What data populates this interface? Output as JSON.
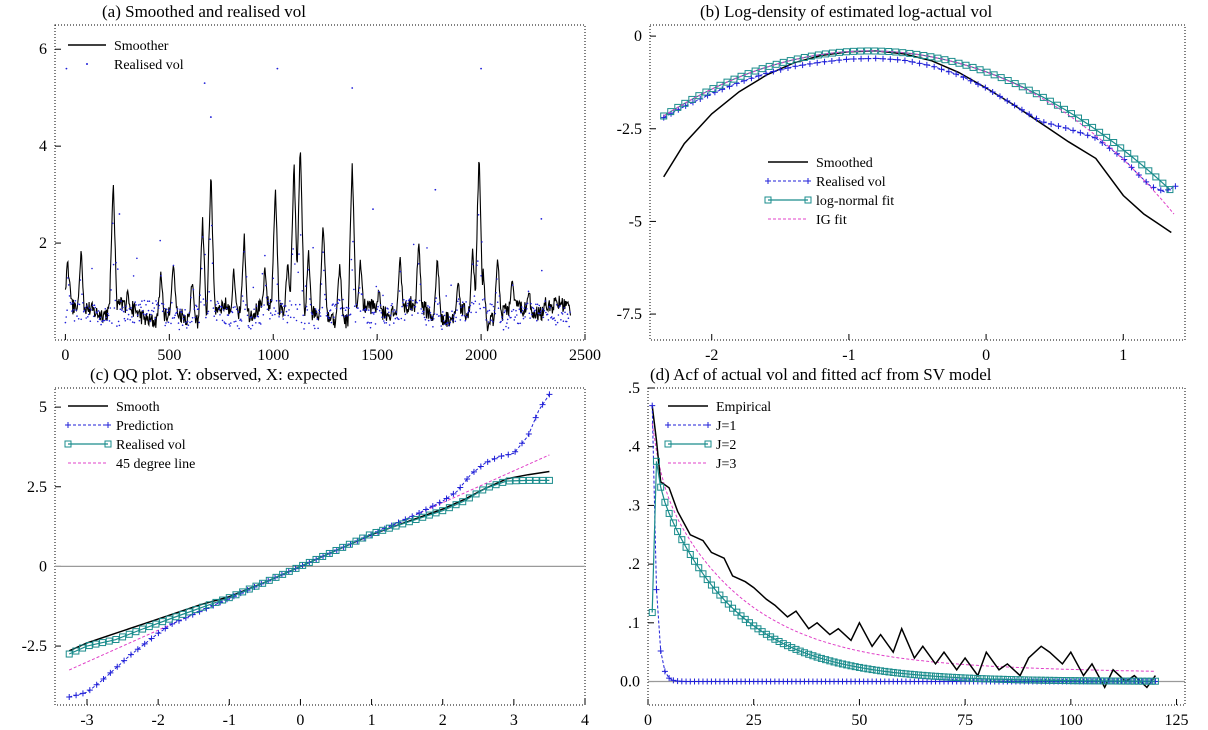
{
  "colors": {
    "smooth": "#000000",
    "blue": "#1f1fd8",
    "teal": "#1a8c8c",
    "magenta": "#e040c8",
    "zero": "#9a9a9a",
    "frame": "#000000"
  },
  "chart_data": [
    {
      "id": "a",
      "type": "line",
      "title": "(a) Smoothed and realised vol",
      "xlim": [
        -50,
        2500
      ],
      "ylim": [
        0.0,
        6.5
      ],
      "xticks": [
        0,
        500,
        1000,
        1500,
        2000,
        2500
      ],
      "yticks": [
        2,
        4,
        6
      ],
      "legend": {
        "position": "top-left",
        "entries": [
          {
            "label": "Smoother",
            "style": "smooth"
          },
          {
            "label": "Realised vol",
            "style": "dots"
          }
        ]
      },
      "series": [
        {
          "name": "Smoother",
          "style": "smooth",
          "generated": "vol_smooth"
        },
        {
          "name": "Realised vol",
          "style": "dots",
          "generated": "vol_dots",
          "x": [
            5,
            260,
            670,
            700,
            1020,
            1380,
            1480,
            1780,
            2000,
            2290
          ],
          "y": [
            5.6,
            2.6,
            5.3,
            4.6,
            5.6,
            5.2,
            2.7,
            3.1,
            5.6,
            2.5
          ]
        }
      ],
      "spikes": {
        "x": [
          10,
          20,
          75,
          230,
          300,
          460,
          520,
          610,
          660,
          700,
          810,
          860,
          960,
          1010,
          1070,
          1100,
          1130,
          1170,
          1240,
          1320,
          1380,
          1420,
          1510,
          1610,
          1700,
          1790,
          1890,
          1960,
          1990,
          2010,
          2080,
          2150,
          2230,
          2310
        ],
        "y": [
          1.6,
          1.2,
          1.8,
          3.2,
          1.0,
          1.3,
          1.6,
          1.1,
          2.4,
          3.4,
          1.3,
          2.1,
          1.4,
          3.1,
          1.6,
          3.6,
          4.0,
          1.7,
          2.4,
          1.5,
          3.6,
          1.6,
          1.0,
          1.7,
          2.0,
          1.6,
          1.1,
          1.8,
          3.8,
          1.3,
          1.6,
          1.2,
          1.0,
          0.8
        ]
      }
    },
    {
      "id": "b",
      "type": "line",
      "title": "(b) Log-density of estimated log-actual vol",
      "xlim": [
        -2.45,
        1.45
      ],
      "ylim": [
        -8.2,
        0.3
      ],
      "xticks": [
        -2,
        -1,
        0,
        1
      ],
      "yticks": [
        0,
        -2.5,
        -5,
        -7.5
      ],
      "legend": {
        "position": "center-right",
        "entries": [
          {
            "label": "Smoothed",
            "style": "smooth"
          },
          {
            "label": "Realised vol",
            "style": "plus"
          },
          {
            "label": "log-normal fit",
            "style": "square"
          },
          {
            "label": "IG fit",
            "style": "dash"
          }
        ]
      },
      "series": [
        {
          "name": "Smoothed",
          "style": "smooth",
          "x": [
            -2.35,
            -2.2,
            -2.0,
            -1.8,
            -1.6,
            -1.4,
            -1.2,
            -1.0,
            -0.8,
            -0.6,
            -0.4,
            -0.2,
            0.0,
            0.2,
            0.4,
            0.6,
            0.8,
            1.0,
            1.15,
            1.25,
            1.35
          ],
          "y": [
            -3.8,
            -2.9,
            -2.1,
            -1.5,
            -1.05,
            -0.72,
            -0.52,
            -0.42,
            -0.4,
            -0.48,
            -0.66,
            -0.98,
            -1.4,
            -1.85,
            -2.35,
            -2.85,
            -3.3,
            -4.3,
            -4.8,
            -5.05,
            -5.3
          ]
        },
        {
          "name": "Realised vol",
          "style": "plus",
          "x": [
            -2.35,
            -2.2,
            -2.0,
            -1.8,
            -1.6,
            -1.4,
            -1.2,
            -1.0,
            -0.8,
            -0.6,
            -0.4,
            -0.2,
            0.0,
            0.2,
            0.4,
            0.6,
            0.8,
            1.0,
            1.1,
            1.2,
            1.3,
            1.38
          ],
          "y": [
            -2.2,
            -1.9,
            -1.55,
            -1.25,
            -1.0,
            -0.82,
            -0.7,
            -0.62,
            -0.6,
            -0.65,
            -0.8,
            -1.05,
            -1.4,
            -1.85,
            -2.3,
            -2.5,
            -2.75,
            -3.3,
            -3.7,
            -4.05,
            -4.2,
            -4.05
          ]
        },
        {
          "name": "log-normal fit",
          "style": "square",
          "fn": "ln"
        },
        {
          "name": "IG fit",
          "style": "dash",
          "fn": "ig"
        }
      ]
    },
    {
      "id": "c",
      "type": "line",
      "title": "(c) QQ plot. Y: observed, X: expected",
      "xlim": [
        -3.45,
        4.0
      ],
      "ylim": [
        -4.35,
        5.6
      ],
      "xticks": [
        -3,
        -2,
        -1,
        0,
        1,
        2,
        3,
        4
      ],
      "yticks": [
        5,
        2.5,
        0,
        -2.5
      ],
      "zero_line": true,
      "legend": {
        "position": "top-left",
        "entries": [
          {
            "label": "Smooth",
            "style": "smooth"
          },
          {
            "label": "Prediction",
            "style": "plus"
          },
          {
            "label": "Realised vol",
            "style": "square"
          },
          {
            "label": "45 degree line",
            "style": "dash"
          }
        ]
      },
      "series": [
        {
          "name": "45 degree line",
          "style": "dash",
          "x": [
            -3.25,
            3.5
          ],
          "y": [
            -3.25,
            3.5
          ]
        },
        {
          "name": "Smooth",
          "style": "smooth",
          "x": [
            -3.25,
            -3.0,
            -2.6,
            -2.2,
            -1.8,
            -1.4,
            -1.0,
            -0.5,
            0.0,
            0.5,
            1.0,
            1.5,
            2.0,
            2.3,
            2.6,
            2.9,
            3.2,
            3.5
          ],
          "y": [
            -2.65,
            -2.4,
            -2.1,
            -1.8,
            -1.5,
            -1.2,
            -0.95,
            -0.5,
            0.0,
            0.5,
            1.0,
            1.4,
            1.8,
            2.1,
            2.45,
            2.75,
            2.88,
            2.98
          ]
        },
        {
          "name": "Prediction",
          "style": "plus",
          "x": [
            -3.25,
            -3.0,
            -2.8,
            -2.6,
            -2.4,
            -2.2,
            -2.0,
            -1.8,
            -1.5,
            -1.2,
            -0.8,
            -0.4,
            0.0,
            0.4,
            0.8,
            1.2,
            1.6,
            2.0,
            2.2,
            2.4,
            2.6,
            2.8,
            3.0,
            3.2,
            3.35,
            3.5
          ],
          "y": [
            -4.1,
            -3.95,
            -3.6,
            -3.2,
            -2.8,
            -2.45,
            -2.1,
            -1.8,
            -1.5,
            -1.2,
            -0.8,
            -0.4,
            0.0,
            0.4,
            0.8,
            1.2,
            1.6,
            2.05,
            2.35,
            2.9,
            3.25,
            3.45,
            3.55,
            4.1,
            4.9,
            5.4
          ]
        },
        {
          "name": "Realised vol",
          "style": "square",
          "x": [
            -3.25,
            -3.0,
            -2.6,
            -2.2,
            -1.8,
            -1.4,
            -1.0,
            -0.5,
            0.0,
            0.5,
            1.0,
            1.5,
            2.0,
            2.3,
            2.6,
            2.9,
            3.2,
            3.5
          ],
          "y": [
            -2.75,
            -2.5,
            -2.3,
            -1.95,
            -1.62,
            -1.3,
            -0.98,
            -0.5,
            0.0,
            0.5,
            1.02,
            1.38,
            1.75,
            2.05,
            2.45,
            2.68,
            2.7,
            2.7
          ]
        }
      ]
    },
    {
      "id": "d",
      "type": "line",
      "title": "(d) Acf of actual vol and fitted acf from SV model",
      "xlim": [
        0,
        127
      ],
      "ylim": [
        -0.04,
        0.5
      ],
      "xticks": [
        0,
        25,
        50,
        75,
        100,
        125
      ],
      "yticks": [
        0.5,
        0.4,
        0.3,
        0.2,
        0.1,
        0.0
      ],
      "ytick_labels": [
        ".5",
        ".4",
        ".3",
        ".2",
        ".1",
        "0.0"
      ],
      "zero_line": true,
      "legend": {
        "position": "top-left",
        "entries": [
          {
            "label": "Empirical",
            "style": "smooth"
          },
          {
            "label": "J=1",
            "style": "plus"
          },
          {
            "label": "J=2",
            "style": "square"
          },
          {
            "label": "J=3",
            "style": "dash"
          }
        ]
      },
      "series": [
        {
          "name": "J=3",
          "style": "dash",
          "fn": "j3"
        },
        {
          "name": "Empirical",
          "style": "smooth",
          "x": [
            1,
            2,
            3,
            5,
            7,
            10,
            13,
            15,
            18,
            20,
            23,
            25,
            28,
            30,
            33,
            35,
            38,
            40,
            43,
            45,
            48,
            50,
            53,
            55,
            58,
            60,
            63,
            65,
            68,
            70,
            73,
            75,
            78,
            80,
            83,
            85,
            88,
            90,
            93,
            95,
            98,
            100,
            103,
            105,
            108,
            110,
            113,
            115,
            118,
            120
          ],
          "y": [
            0.47,
            0.41,
            0.34,
            0.33,
            0.29,
            0.25,
            0.24,
            0.22,
            0.21,
            0.18,
            0.17,
            0.16,
            0.14,
            0.13,
            0.11,
            0.12,
            0.09,
            0.1,
            0.08,
            0.09,
            0.07,
            0.1,
            0.06,
            0.08,
            0.05,
            0.09,
            0.04,
            0.06,
            0.03,
            0.05,
            0.02,
            0.04,
            0.01,
            0.05,
            0.02,
            0.03,
            0.01,
            0.04,
            0.06,
            0.05,
            0.03,
            0.05,
            0.01,
            0.03,
            -0.01,
            0.02,
            0.0,
            0.01,
            -0.01,
            0.01
          ]
        },
        {
          "name": "J=1",
          "style": "plus",
          "fn": "j1"
        },
        {
          "name": "J=2",
          "style": "square",
          "fn": "j2"
        }
      ]
    }
  ]
}
